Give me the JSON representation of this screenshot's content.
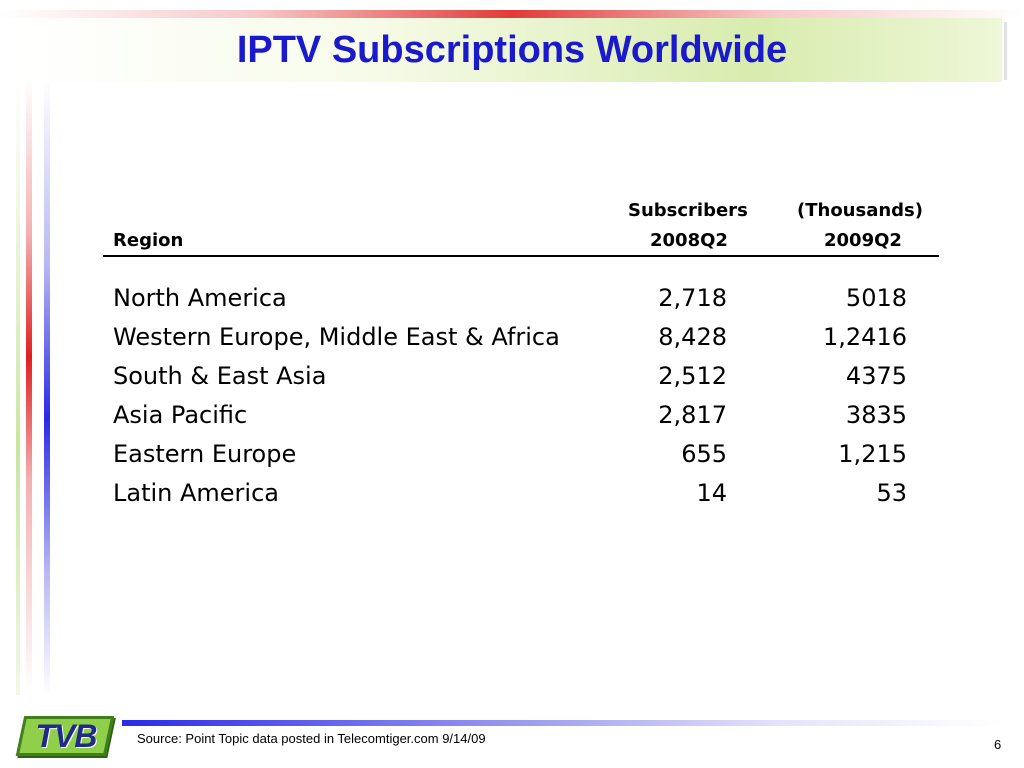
{
  "slide": {
    "title": "IPTV Subscriptions Worldwide",
    "page_number": "6"
  },
  "table": {
    "header_top": {
      "subscribers": "Subscribers",
      "units": "(Thousands)"
    },
    "header": {
      "region": "Region",
      "col1": "2008Q2",
      "col2": "2009Q2"
    },
    "rows": [
      {
        "region": "North America",
        "q2008": "2,718",
        "q2009": "5018"
      },
      {
        "region": "Western Europe, Middle East & Africa",
        "q2008": "8,428",
        "q2009": "1,2416"
      },
      {
        "region": "South & East Asia",
        "q2008": "2,512",
        "q2009": "4375"
      },
      {
        "region": "Asia Pacific",
        "q2008": "2,817",
        "q2009": "3835"
      },
      {
        "region": "Eastern Europe",
        "q2008": "655",
        "q2009": "1,215"
      },
      {
        "region": "Latin America",
        "q2008": "14",
        "q2009": "53"
      }
    ]
  },
  "footer": {
    "source": "Source: Point Topic data posted in Telecomtiger.com 9/14/09",
    "logo_text": "TVB"
  },
  "colors": {
    "title": "#1a1acc",
    "accent_red": "#e02020",
    "accent_blue": "#2a2ae8",
    "accent_green": "#8fcf4a"
  }
}
